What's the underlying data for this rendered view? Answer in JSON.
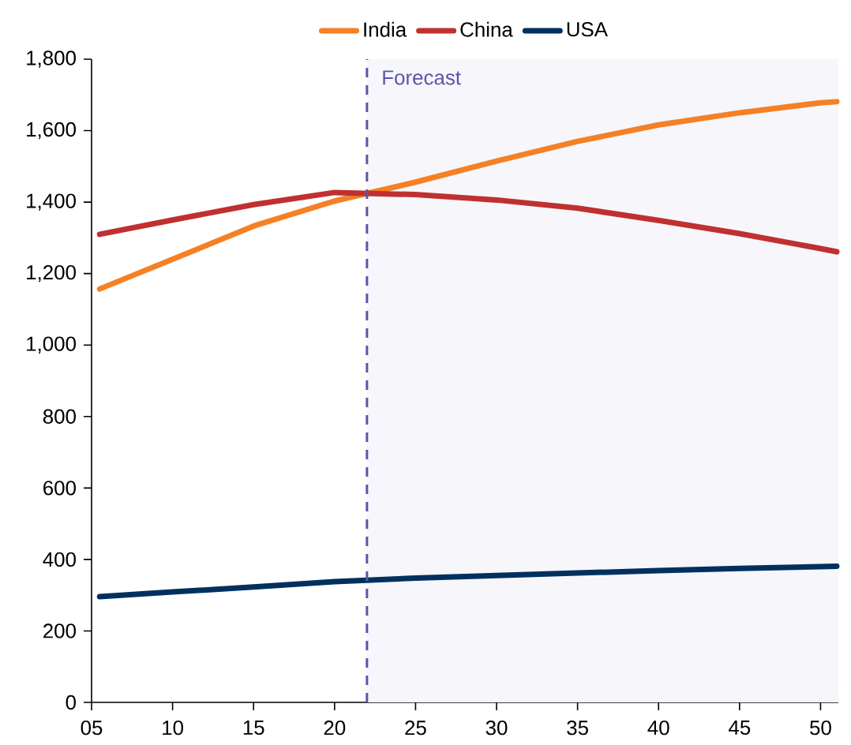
{
  "chart_data": {
    "type": "line",
    "x": [
      2005.5,
      2010,
      2015,
      2020,
      2025,
      2030,
      2035,
      2040,
      2045,
      2050,
      2051
    ],
    "series": [
      {
        "name": "India",
        "color": "#f58025",
        "values": [
          1157,
          1240,
          1333,
          1403,
          1456,
          1515,
          1570,
          1616,
          1650,
          1678,
          1681
        ]
      },
      {
        "name": "China",
        "color": "#c03030",
        "values": [
          1310,
          1350,
          1393,
          1427,
          1421,
          1406,
          1383,
          1349,
          1312,
          1270,
          1261
        ]
      },
      {
        "name": "USA",
        "color": "#00305e",
        "values": [
          296,
          309,
          323,
          338,
          348,
          355,
          362,
          369,
          375,
          380,
          381
        ]
      }
    ],
    "xlim": [
      2005,
      2051.1
    ],
    "xticks": [
      {
        "value": 2005,
        "label": "05"
      },
      {
        "value": 2010,
        "label": "10"
      },
      {
        "value": 2015,
        "label": "15"
      },
      {
        "value": 2020,
        "label": "20"
      },
      {
        "value": 2025,
        "label": "25"
      },
      {
        "value": 2030,
        "label": "30"
      },
      {
        "value": 2035,
        "label": "35"
      },
      {
        "value": 2040,
        "label": "40"
      },
      {
        "value": 2045,
        "label": "45"
      },
      {
        "value": 2050,
        "label": "50"
      }
    ],
    "ylim": [
      0,
      1800
    ],
    "yticks": [
      0,
      200,
      400,
      600,
      800,
      {
        "value": 1000,
        "label": "1,000"
      },
      {
        "value": 1200,
        "label": "1,200"
      },
      {
        "value": 1400,
        "label": "1,400"
      },
      {
        "value": 1600,
        "label": "1,600"
      },
      {
        "value": 1800,
        "label": "1,800"
      }
    ],
    "ref_lines": [
      {
        "axis": "x",
        "value": 2022,
        "label": "Forecast",
        "color": "#5b55a8",
        "line_style": "dashed"
      }
    ],
    "bands": [
      {
        "axis": "x",
        "from": 2022,
        "to": 2051.1,
        "color": "#f6f6fb"
      }
    ],
    "legend": "top",
    "grid": false,
    "marker": "none",
    "line_style": "solid"
  }
}
